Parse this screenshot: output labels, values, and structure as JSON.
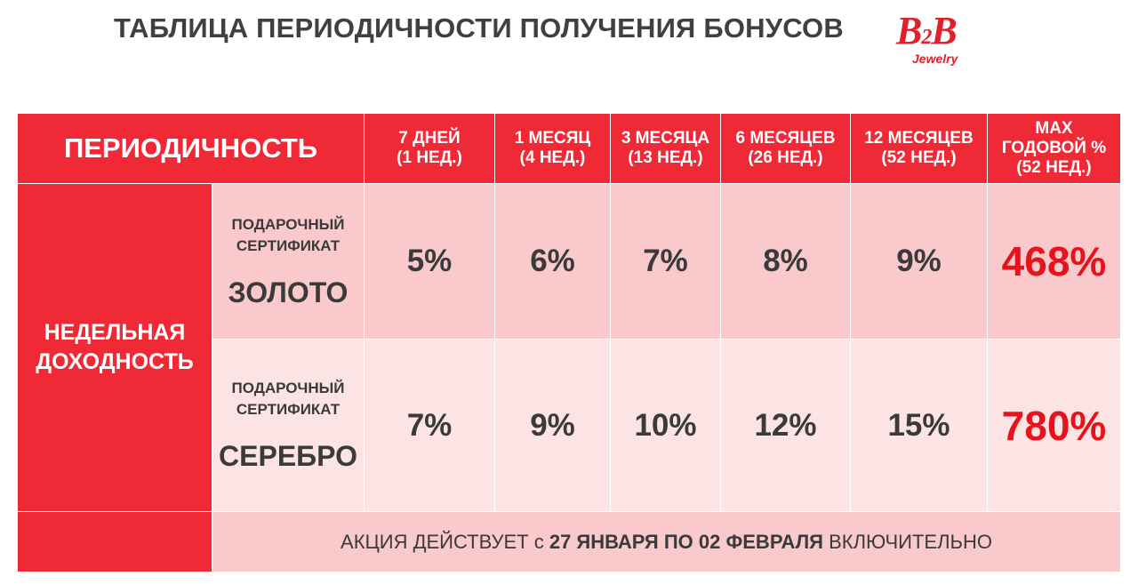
{
  "header": {
    "title": "ТАБЛИЦА ПЕРИОДИЧНОСТИ ПОЛУЧЕНИЯ БОНУСОВ",
    "logo_main_b1": "B",
    "logo_main_sub": "2",
    "logo_main_b2": "B",
    "logo_sub": "Jewelry",
    "brand_color": "#e0202b"
  },
  "table": {
    "periodicity_label": "ПЕРИОДИЧНОСТЬ",
    "columns": [
      {
        "line1": "7 ДНЕЙ",
        "line2": "(1 НЕД.)"
      },
      {
        "line1": "1 МЕСЯЦ",
        "line2": "(4 НЕД.)"
      },
      {
        "line1": "3 МЕСЯЦА",
        "line2": "(13 НЕД.)"
      },
      {
        "line1": "6 МЕСЯЦЕВ",
        "line2": "(26 НЕД.)"
      },
      {
        "line1": "12 МЕСЯЦЕВ",
        "line2": "(52 НЕД.)"
      }
    ],
    "max_column": {
      "line1": "MAX",
      "line2": "ГОДОВОЙ %",
      "line3": "(52 НЕД.)"
    },
    "row_group_label_line1": "НЕДЕЛЬНАЯ",
    "row_group_label_line2": "ДОХОДНОСТЬ",
    "rows": [
      {
        "cert_line1": "ПОДАРОЧНЫЙ",
        "cert_line2": "СЕРТИФИКАТ",
        "cert_type": "ЗОЛОТО",
        "values": [
          "5%",
          "6%",
          "7%",
          "8%",
          "9%"
        ],
        "max": "468%"
      },
      {
        "cert_line1": "ПОДАРОЧНЫЙ",
        "cert_line2": "СЕРТИФИКАТ",
        "cert_type": "СЕРЕБРО",
        "values": [
          "7%",
          "9%",
          "10%",
          "12%",
          "15%"
        ],
        "max": "780%"
      }
    ],
    "promo_prefix": "АКЦИЯ ДЕЙСТВУЕТ с ",
    "promo_bold": "27 ЯНВАРЯ ПО 02 ФЕВРАЛЯ",
    "promo_suffix": " ВКЛЮЧИТЕЛЬНО",
    "colors": {
      "red": "#ef2936",
      "pink_dark": "#f9c9cb",
      "pink_light": "#fce4e4",
      "max_value": "#e8121d"
    }
  }
}
